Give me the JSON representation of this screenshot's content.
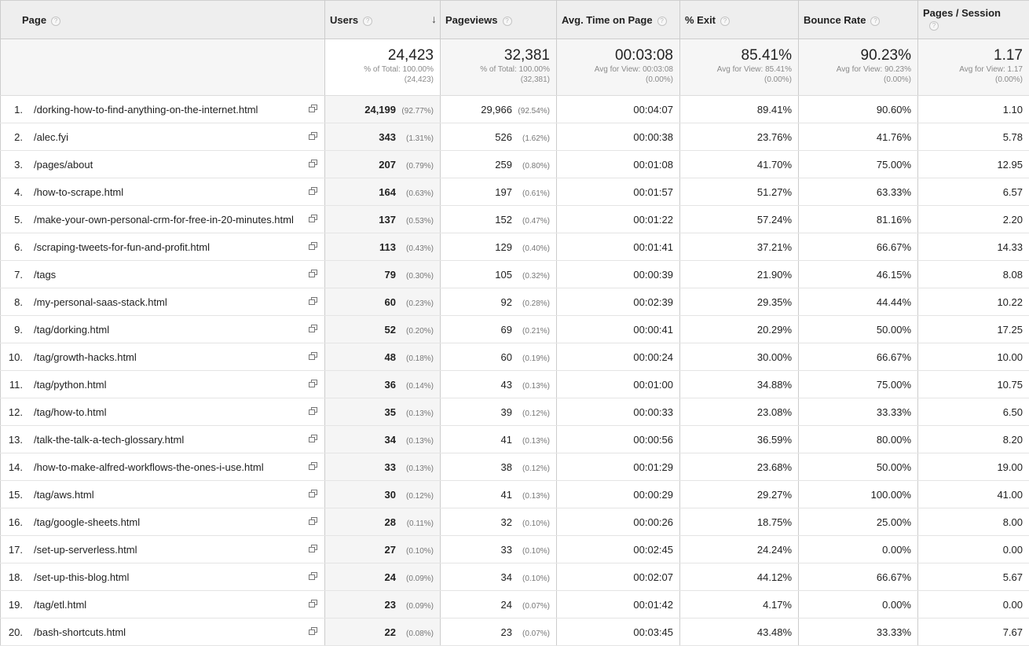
{
  "headers": {
    "page": "Page",
    "users": "Users",
    "pageviews": "Pageviews",
    "avg_time": "Avg. Time on Page",
    "exit": "% Exit",
    "bounce": "Bounce Rate",
    "pps": "Pages / Session",
    "help_glyph": "?",
    "sort_glyph": "↓"
  },
  "totals": {
    "users": {
      "value": "24,423",
      "line1": "% of Total: 100.00%",
      "line2": "(24,423)"
    },
    "pageviews": {
      "value": "32,381",
      "line1": "% of Total: 100.00%",
      "line2": "(32,381)"
    },
    "avg_time": {
      "value": "00:03:08",
      "line1": "Avg for View: 00:03:08",
      "line2": "(0.00%)"
    },
    "exit": {
      "value": "85.41%",
      "line1": "Avg for View: 85.41%",
      "line2": "(0.00%)"
    },
    "bounce": {
      "value": "90.23%",
      "line1": "Avg for View: 90.23%",
      "line2": "(0.00%)"
    },
    "pps": {
      "value": "1.17",
      "line1": "Avg for View: 1.17",
      "line2": "(0.00%)"
    }
  },
  "rows": [
    {
      "idx": "1.",
      "page": "/dorking-how-to-find-anything-on-the-internet.html",
      "users": "24,199",
      "users_pct": "(92.77%)",
      "pv": "29,966",
      "pv_pct": "(92.54%)",
      "avg": "00:04:07",
      "exit": "89.41%",
      "bounce": "90.60%",
      "pps": "1.10"
    },
    {
      "idx": "2.",
      "page": "/alec.fyi",
      "users": "343",
      "users_pct": "(1.31%)",
      "pv": "526",
      "pv_pct": "(1.62%)",
      "avg": "00:00:38",
      "exit": "23.76%",
      "bounce": "41.76%",
      "pps": "5.78"
    },
    {
      "idx": "3.",
      "page": "/pages/about",
      "users": "207",
      "users_pct": "(0.79%)",
      "pv": "259",
      "pv_pct": "(0.80%)",
      "avg": "00:01:08",
      "exit": "41.70%",
      "bounce": "75.00%",
      "pps": "12.95"
    },
    {
      "idx": "4.",
      "page": "/how-to-scrape.html",
      "users": "164",
      "users_pct": "(0.63%)",
      "pv": "197",
      "pv_pct": "(0.61%)",
      "avg": "00:01:57",
      "exit": "51.27%",
      "bounce": "63.33%",
      "pps": "6.57"
    },
    {
      "idx": "5.",
      "page": "/make-your-own-personal-crm-for-free-in-20-minutes.html",
      "users": "137",
      "users_pct": "(0.53%)",
      "pv": "152",
      "pv_pct": "(0.47%)",
      "avg": "00:01:22",
      "exit": "57.24%",
      "bounce": "81.16%",
      "pps": "2.20"
    },
    {
      "idx": "6.",
      "page": "/scraping-tweets-for-fun-and-profit.html",
      "users": "113",
      "users_pct": "(0.43%)",
      "pv": "129",
      "pv_pct": "(0.40%)",
      "avg": "00:01:41",
      "exit": "37.21%",
      "bounce": "66.67%",
      "pps": "14.33"
    },
    {
      "idx": "7.",
      "page": "/tags",
      "users": "79",
      "users_pct": "(0.30%)",
      "pv": "105",
      "pv_pct": "(0.32%)",
      "avg": "00:00:39",
      "exit": "21.90%",
      "bounce": "46.15%",
      "pps": "8.08"
    },
    {
      "idx": "8.",
      "page": "/my-personal-saas-stack.html",
      "users": "60",
      "users_pct": "(0.23%)",
      "pv": "92",
      "pv_pct": "(0.28%)",
      "avg": "00:02:39",
      "exit": "29.35%",
      "bounce": "44.44%",
      "pps": "10.22"
    },
    {
      "idx": "9.",
      "page": "/tag/dorking.html",
      "users": "52",
      "users_pct": "(0.20%)",
      "pv": "69",
      "pv_pct": "(0.21%)",
      "avg": "00:00:41",
      "exit": "20.29%",
      "bounce": "50.00%",
      "pps": "17.25"
    },
    {
      "idx": "10.",
      "page": "/tag/growth-hacks.html",
      "users": "48",
      "users_pct": "(0.18%)",
      "pv": "60",
      "pv_pct": "(0.19%)",
      "avg": "00:00:24",
      "exit": "30.00%",
      "bounce": "66.67%",
      "pps": "10.00"
    },
    {
      "idx": "11.",
      "page": "/tag/python.html",
      "users": "36",
      "users_pct": "(0.14%)",
      "pv": "43",
      "pv_pct": "(0.13%)",
      "avg": "00:01:00",
      "exit": "34.88%",
      "bounce": "75.00%",
      "pps": "10.75"
    },
    {
      "idx": "12.",
      "page": "/tag/how-to.html",
      "users": "35",
      "users_pct": "(0.13%)",
      "pv": "39",
      "pv_pct": "(0.12%)",
      "avg": "00:00:33",
      "exit": "23.08%",
      "bounce": "33.33%",
      "pps": "6.50"
    },
    {
      "idx": "13.",
      "page": "/talk-the-talk-a-tech-glossary.html",
      "users": "34",
      "users_pct": "(0.13%)",
      "pv": "41",
      "pv_pct": "(0.13%)",
      "avg": "00:00:56",
      "exit": "36.59%",
      "bounce": "80.00%",
      "pps": "8.20"
    },
    {
      "idx": "14.",
      "page": "/how-to-make-alfred-workflows-the-ones-i-use.html",
      "users": "33",
      "users_pct": "(0.13%)",
      "pv": "38",
      "pv_pct": "(0.12%)",
      "avg": "00:01:29",
      "exit": "23.68%",
      "bounce": "50.00%",
      "pps": "19.00"
    },
    {
      "idx": "15.",
      "page": "/tag/aws.html",
      "users": "30",
      "users_pct": "(0.12%)",
      "pv": "41",
      "pv_pct": "(0.13%)",
      "avg": "00:00:29",
      "exit": "29.27%",
      "bounce": "100.00%",
      "pps": "41.00"
    },
    {
      "idx": "16.",
      "page": "/tag/google-sheets.html",
      "users": "28",
      "users_pct": "(0.11%)",
      "pv": "32",
      "pv_pct": "(0.10%)",
      "avg": "00:00:26",
      "exit": "18.75%",
      "bounce": "25.00%",
      "pps": "8.00"
    },
    {
      "idx": "17.",
      "page": "/set-up-serverless.html",
      "users": "27",
      "users_pct": "(0.10%)",
      "pv": "33",
      "pv_pct": "(0.10%)",
      "avg": "00:02:45",
      "exit": "24.24%",
      "bounce": "0.00%",
      "pps": "0.00"
    },
    {
      "idx": "18.",
      "page": "/set-up-this-blog.html",
      "users": "24",
      "users_pct": "(0.09%)",
      "pv": "34",
      "pv_pct": "(0.10%)",
      "avg": "00:02:07",
      "exit": "44.12%",
      "bounce": "66.67%",
      "pps": "5.67"
    },
    {
      "idx": "19.",
      "page": "/tag/etl.html",
      "users": "23",
      "users_pct": "(0.09%)",
      "pv": "24",
      "pv_pct": "(0.07%)",
      "avg": "00:01:42",
      "exit": "4.17%",
      "bounce": "0.00%",
      "pps": "0.00"
    },
    {
      "idx": "20.",
      "page": "/bash-shortcuts.html",
      "users": "22",
      "users_pct": "(0.08%)",
      "pv": "23",
      "pv_pct": "(0.07%)",
      "avg": "00:03:45",
      "exit": "43.48%",
      "bounce": "33.33%",
      "pps": "7.67"
    }
  ]
}
